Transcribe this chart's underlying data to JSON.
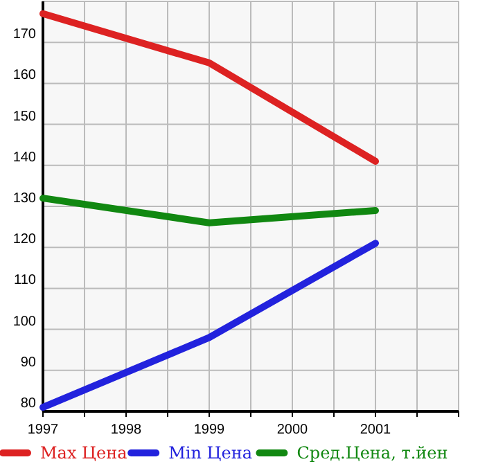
{
  "chart_data": {
    "type": "line",
    "x": [
      1997,
      1999,
      2001
    ],
    "series": [
      {
        "name": "Max Цена",
        "color": "#dd2222",
        "values": [
          177,
          165,
          141
        ]
      },
      {
        "name": "Min Цена",
        "color": "#2222dd",
        "values": [
          81,
          98,
          121
        ]
      },
      {
        "name": "Сред.Цена, т.йен",
        "color": "#118811",
        "values": [
          132,
          126,
          129
        ]
      }
    ],
    "xlim": [
      1997,
      2002
    ],
    "xticks": [
      1997,
      {
        "value": 1997.5,
        "label": null
      },
      1998,
      {
        "value": 1998.5,
        "label": null
      },
      1999,
      {
        "value": 1999.5,
        "label": null
      },
      2000,
      {
        "value": 2000.5,
        "label": null
      },
      2001,
      {
        "value": 2001.5,
        "label": null
      },
      {
        "value": 2002,
        "label": null
      }
    ],
    "ylim": [
      80,
      180
    ],
    "yticks": [
      80,
      90,
      100,
      110,
      120,
      130,
      140,
      150,
      160,
      170,
      {
        "value": 180,
        "label": null
      }
    ],
    "grid": true,
    "legend": "bottom",
    "marker": "none",
    "line_style": "solid"
  }
}
